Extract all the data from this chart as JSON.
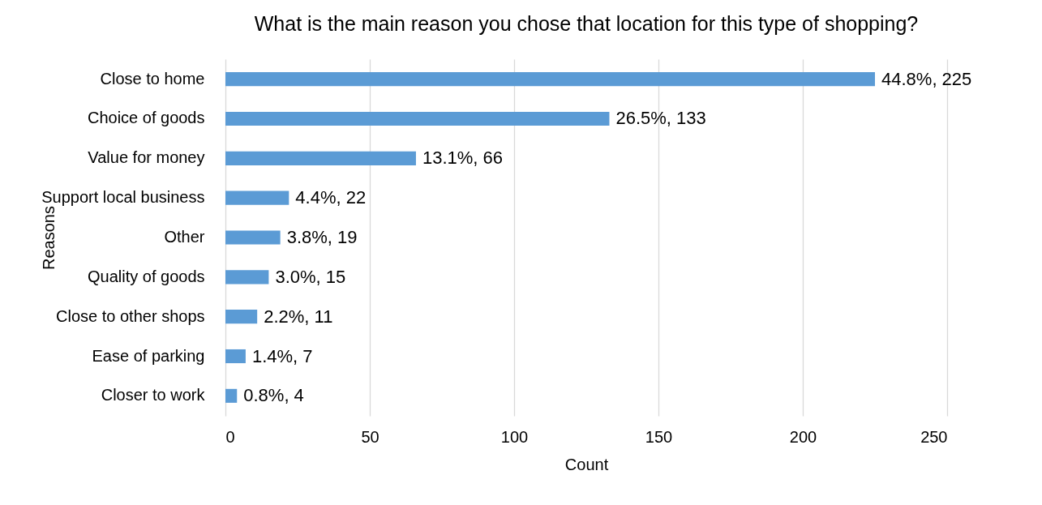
{
  "chart_data": {
    "type": "bar",
    "orientation": "horizontal",
    "title": "What is the main reason you chose that location for this type of shopping?",
    "xlabel": "Count",
    "ylabel": "Reasons",
    "categories": [
      "Close to home",
      "Choice of goods",
      "Value for money",
      "Support local business",
      "Other",
      "Quality of goods",
      "Close to other shops",
      "Ease of parking",
      "Closer to work"
    ],
    "values": [
      225,
      133,
      66,
      22,
      19,
      15,
      11,
      7,
      4
    ],
    "value_labels": [
      "44.8%, 225",
      "26.5%, 133",
      "13.1%, 66",
      "4.4%, 22",
      "3.8%, 19",
      "3.0%, 15",
      "2.2%, 11",
      "1.4%, 7",
      "0.8%, 4"
    ],
    "color": "#5b9bd5",
    "xlim": [
      0,
      250
    ],
    "xticks": [
      0,
      50,
      100,
      150,
      200,
      250
    ],
    "grid": "x"
  }
}
